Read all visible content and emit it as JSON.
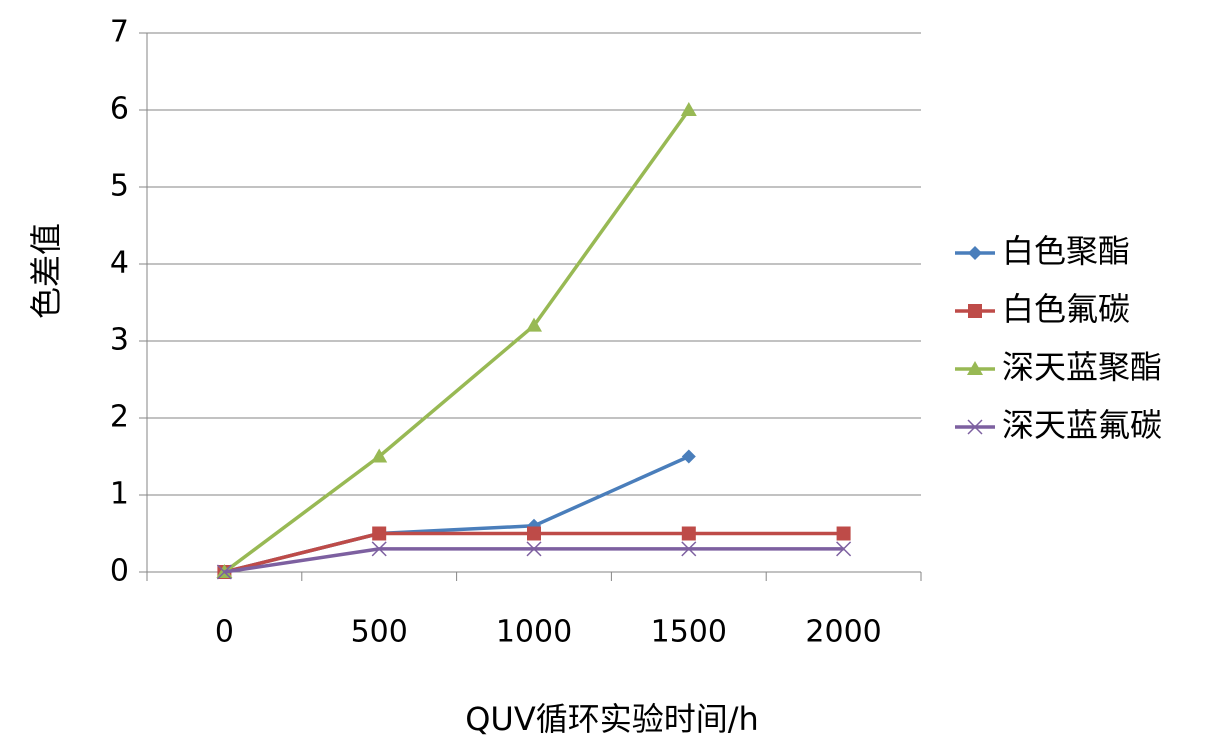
{
  "chart_data": {
    "type": "line",
    "title": "",
    "xlabel": "QUV循环实验时间/h",
    "ylabel": "色差值",
    "categories": [
      "0",
      "500",
      "1000",
      "1500",
      "2000"
    ],
    "ylim": [
      0,
      7
    ],
    "yticks": [
      "0",
      "1",
      "2",
      "3",
      "4",
      "5",
      "6",
      "7"
    ],
    "grid": true,
    "legend_position": "right",
    "series": [
      {
        "name": "白色聚酯",
        "values": [
          0,
          0.5,
          0.6,
          1.5,
          null
        ],
        "color": "#4A7EBB",
        "marker": "diamond"
      },
      {
        "name": "白色氟碳",
        "values": [
          0,
          0.5,
          0.5,
          0.5,
          0.5
        ],
        "color": "#BE4B48",
        "marker": "square"
      },
      {
        "name": "深天蓝聚酯",
        "values": [
          0,
          1.5,
          3.2,
          6.0,
          null
        ],
        "color": "#98B954",
        "marker": "triangle"
      },
      {
        "name": "深天蓝氟碳",
        "values": [
          0,
          0.3,
          0.3,
          0.3,
          0.3
        ],
        "color": "#7D60A0",
        "marker": "x"
      }
    ]
  }
}
